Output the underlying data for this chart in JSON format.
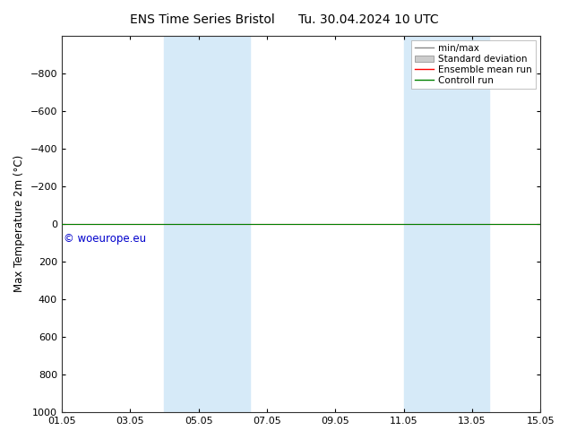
{
  "title": "ENS Time Series Bristol      Tu. 30.04.2024 10 UTC",
  "ylabel": "Max Temperature 2m (°C)",
  "ylim_top": -1000,
  "ylim_bottom": 1000,
  "yticks": [
    -800,
    -600,
    -400,
    -200,
    0,
    200,
    400,
    600,
    800,
    1000
  ],
  "xtick_labels": [
    "01.05",
    "03.05",
    "05.05",
    "07.05",
    "09.05",
    "11.05",
    "13.05",
    "15.05"
  ],
  "xtick_positions": [
    0,
    2,
    4,
    6,
    8,
    10,
    12,
    14
  ],
  "xlim": [
    0,
    14
  ],
  "shaded_regions": [
    {
      "x_start": 3.0,
      "x_end": 4.0
    },
    {
      "x_start": 4.0,
      "x_end": 5.5
    },
    {
      "x_start": 10.0,
      "x_end": 11.0
    },
    {
      "x_start": 11.0,
      "x_end": 12.5
    }
  ],
  "horizontal_line_y": 0,
  "control_run_color": "#008000",
  "ensemble_mean_color": "#ff0000",
  "watermark_text": "© woeurope.eu",
  "watermark_color": "#0000cc",
  "bg_color": "#ffffff",
  "shade_color": "#d6eaf8",
  "legend_entries": [
    "min/max",
    "Standard deviation",
    "Ensemble mean run",
    "Controll run"
  ],
  "legend_line_color": "#888888",
  "legend_std_color": "#cccccc",
  "legend_ens_color": "#ff0000",
  "legend_ctrl_color": "#008000",
  "title_fontsize": 10,
  "axis_label_fontsize": 8.5,
  "tick_fontsize": 8,
  "legend_fontsize": 7.5
}
